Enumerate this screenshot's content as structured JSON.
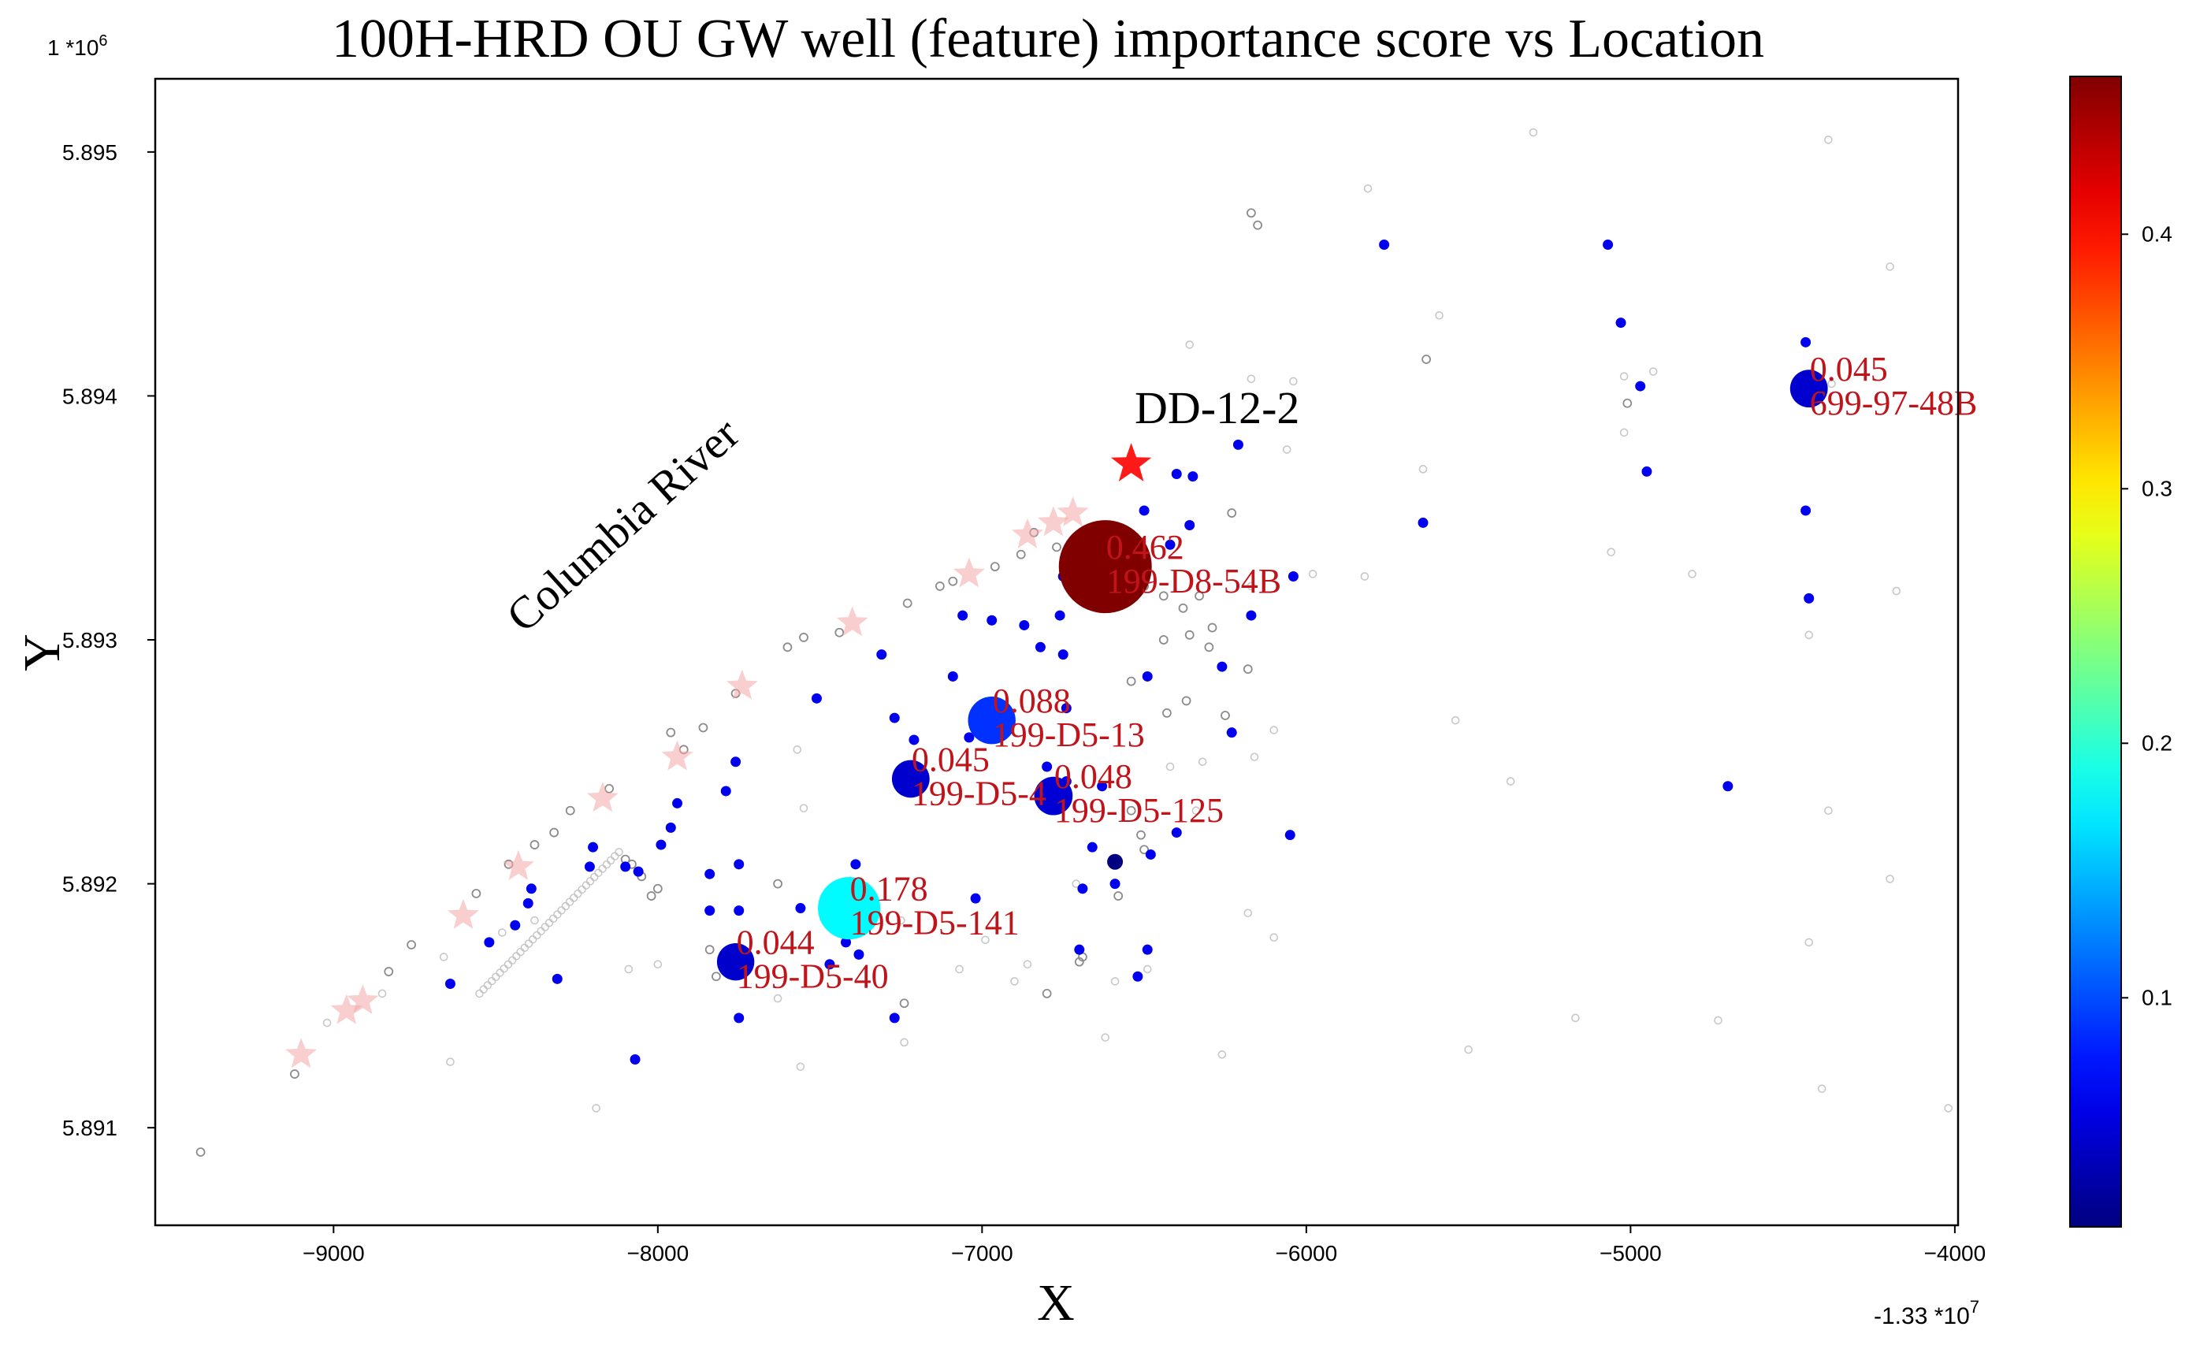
{
  "chart_data": {
    "type": "scatter",
    "title": "100H-HRD OU GW well (feature) importance score vs Location",
    "xlabel": "X",
    "ylabel": "Y",
    "x_offset_label": "-1.33 *10",
    "x_offset_exp": "7",
    "y_scale_label": "1 *10",
    "y_scale_exp": "6",
    "xlim": [
      -9550,
      -3990
    ],
    "ylim": [
      5.8906,
      5.8953
    ],
    "x_ticks": [
      -9000,
      -8000,
      -7000,
      -6000,
      -5000,
      -4000
    ],
    "x_tick_labels": [
      "−9000",
      "−8000",
      "−7000",
      "−6000",
      "−5000",
      "−4000"
    ],
    "y_ticks": [
      5.891,
      5.892,
      5.893,
      5.894,
      5.895
    ],
    "y_tick_labels": [
      "5.891",
      "5.892",
      "5.893",
      "5.894",
      "5.895"
    ],
    "grid": false,
    "colorbar": {
      "colormap": "jet",
      "range": [
        0.01,
        0.462
      ],
      "ticks": [
        0.1,
        0.2,
        0.3,
        0.4
      ],
      "tick_labels": [
        "0.1",
        "0.2",
        "0.3",
        "0.4"
      ],
      "position": "right"
    },
    "annotations": {
      "river_label": "Columbia River",
      "target_well_label": "DD-12-2"
    },
    "target_well": {
      "x": -6540,
      "y": 5.89372,
      "color": "#ff1a1a"
    },
    "labeled_wells": [
      {
        "name": "199-D8-54B",
        "score": 0.462,
        "score_label": "0.462",
        "x": -6620,
        "y": 5.8933,
        "size": 0.462
      },
      {
        "name": "199-D5-141",
        "score": 0.178,
        "score_label": "0.178",
        "x": -7410,
        "y": 5.8919,
        "size": 0.178
      },
      {
        "name": "199-D5-13",
        "score": 0.088,
        "score_label": "0.088",
        "x": -6970,
        "y": 5.89267,
        "size": 0.088
      },
      {
        "name": "199-D5-125",
        "score": 0.048,
        "score_label": "0.048",
        "x": -6780,
        "y": 5.89236,
        "size": 0.048
      },
      {
        "name": "199-D5-4",
        "score": 0.045,
        "score_label": "0.045",
        "x": -7220,
        "y": 5.89243,
        "size": 0.045
      },
      {
        "name": "699-97-48B",
        "score": 0.045,
        "score_label": "0.045",
        "x": -4450,
        "y": 5.89403,
        "size": 0.045
      },
      {
        "name": "199-D5-40",
        "score": 0.044,
        "score_label": "0.044",
        "x": -7760,
        "y": 5.89168,
        "size": 0.044
      }
    ],
    "wells": [
      [
        -5760,
        5.89462
      ],
      [
        -5070,
        5.89462
      ],
      [
        -5030,
        5.8943
      ],
      [
        -4970,
        5.89404
      ],
      [
        -4950,
        5.89369
      ],
      [
        -4460,
        5.89422
      ],
      [
        -4460,
        5.89353
      ],
      [
        -4450,
        5.89317
      ],
      [
        -4700,
        5.8924
      ],
      [
        -5640,
        5.89348
      ],
      [
        -6210,
        5.8938
      ],
      [
        -6400,
        5.89368
      ],
      [
        -6350,
        5.89367
      ],
      [
        -6500,
        5.89353
      ],
      [
        -6360,
        5.89347
      ],
      [
        -6420,
        5.89339
      ],
      [
        -6040,
        5.89326
      ],
      [
        -6170,
        5.8931
      ],
      [
        -6260,
        5.89289
      ],
      [
        -6490,
        5.89285
      ],
      [
        -6230,
        5.89262
      ],
      [
        -6750,
        5.89326
      ],
      [
        -6760,
        5.8931
      ],
      [
        -6820,
        5.89297
      ],
      [
        -6970,
        5.89308
      ],
      [
        -7060,
        5.8931
      ],
      [
        -6870,
        5.89306
      ],
      [
        -6750,
        5.89294
      ],
      [
        -7310,
        5.89294
      ],
      [
        -7090,
        5.89285
      ],
      [
        -6740,
        5.89272
      ],
      [
        -7510,
        5.89276
      ],
      [
        -7270,
        5.89268
      ],
      [
        -7040,
        5.8926
      ],
      [
        -7210,
        5.89259
      ],
      [
        -6800,
        5.89248
      ],
      [
        -6740,
        5.89242
      ],
      [
        -6630,
        5.8924
      ],
      [
        -6800,
        5.89232
      ],
      [
        -7760,
        5.8925
      ],
      [
        -7790,
        5.89238
      ],
      [
        -7940,
        5.89233
      ],
      [
        -7960,
        5.89223
      ],
      [
        -7990,
        5.89216
      ],
      [
        -8200,
        5.89215
      ],
      [
        -8100,
        5.89207
      ],
      [
        -8210,
        5.89207
      ],
      [
        -8060,
        5.89205
      ],
      [
        -8390,
        5.89198
      ],
      [
        -7840,
        5.89204
      ],
      [
        -7750,
        5.89208
      ],
      [
        -8400,
        5.89192
      ],
      [
        -8440,
        5.89183
      ],
      [
        -8520,
        5.89176
      ],
      [
        -7840,
        5.89189
      ],
      [
        -7750,
        5.89189
      ],
      [
        -8310,
        5.89161
      ],
      [
        -8640,
        5.89159
      ],
      [
        -7390,
        5.89208
      ],
      [
        -7560,
        5.8919
      ],
      [
        -7020,
        5.89194
      ],
      [
        -7380,
        5.89171
      ],
      [
        -7470,
        5.89167
      ],
      [
        -7420,
        5.89176
      ],
      [
        -6590,
        5.892
      ],
      [
        -6690,
        5.89198
      ],
      [
        -6700,
        5.89173
      ],
      [
        -6490,
        5.89173
      ],
      [
        -6520,
        5.89162
      ],
      [
        -6660,
        5.89215
      ],
      [
        -6480,
        5.89212
      ],
      [
        -6400,
        5.89221
      ],
      [
        -6050,
        5.8922
      ],
      [
        -7750,
        5.89145
      ],
      [
        -7270,
        5.89145
      ],
      [
        -8070,
        5.89128
      ]
    ],
    "dark_well": [
      -6590,
      5.89209
    ],
    "river_stars": [
      [
        -9100,
        5.8913
      ],
      [
        -8960,
        5.89148
      ],
      [
        -8910,
        5.89152
      ],
      [
        -8600,
        5.89187
      ],
      [
        -8430,
        5.89207
      ],
      [
        -8170,
        5.89235
      ],
      [
        -7940,
        5.89252
      ],
      [
        -7740,
        5.89281
      ],
      [
        -7400,
        5.89307
      ],
      [
        -7040,
        5.89327
      ],
      [
        -6860,
        5.89343
      ],
      [
        -6780,
        5.89348
      ],
      [
        -6720,
        5.89352
      ]
    ],
    "other_locations": [
      [
        -9410,
        5.8909
      ],
      [
        -9120,
        5.89122
      ],
      [
        -8830,
        5.89164
      ],
      [
        -8760,
        5.89175
      ],
      [
        -8560,
        5.89196
      ],
      [
        -8460,
        5.89208
      ],
      [
        -8380,
        5.89216
      ],
      [
        -8320,
        5.89221
      ],
      [
        -8270,
        5.8923
      ],
      [
        -8150,
        5.89239
      ],
      [
        -8100,
        5.8921
      ],
      [
        -8080,
        5.89208
      ],
      [
        -8050,
        5.89203
      ],
      [
        -8020,
        5.89195
      ],
      [
        -7920,
        5.89255
      ],
      [
        -7860,
        5.89264
      ],
      [
        -7760,
        5.89278
      ],
      [
        -7600,
        5.89297
      ],
      [
        -7550,
        5.89301
      ],
      [
        -7440,
        5.89303
      ],
      [
        -7230,
        5.89315
      ],
      [
        -7130,
        5.89322
      ],
      [
        -7090,
        5.89324
      ],
      [
        -6960,
        5.8933
      ],
      [
        -6880,
        5.89335
      ],
      [
        -6840,
        5.89344
      ],
      [
        -6770,
        5.89338
      ],
      [
        -6710,
        5.89328
      ],
      [
        -6500,
        5.89322
      ],
      [
        -6440,
        5.89318
      ],
      [
        -6380,
        5.89313
      ],
      [
        -6330,
        5.89318
      ],
      [
        -6290,
        5.89305
      ],
      [
        -6440,
        5.893
      ],
      [
        -6360,
        5.89302
      ],
      [
        -6300,
        5.89297
      ],
      [
        -6180,
        5.89288
      ],
      [
        -6230,
        5.89352
      ],
      [
        -6170,
        5.89475
      ],
      [
        -6150,
        5.8947
      ],
      [
        -5630,
        5.89415
      ],
      [
        -5010,
        5.89397
      ],
      [
        -6540,
        5.89283
      ],
      [
        -6430,
        5.8927
      ],
      [
        -6370,
        5.89275
      ],
      [
        -6250,
        5.89269
      ],
      [
        -6540,
        5.8923
      ],
      [
        -6510,
        5.8922
      ],
      [
        -6500,
        5.89214
      ],
      [
        -6580,
        5.89195
      ],
      [
        -6700,
        5.89168
      ],
      [
        -6690,
        5.8917
      ],
      [
        -6800,
        5.89155
      ],
      [
        -7840,
        5.89173
      ],
      [
        -7820,
        5.89162
      ],
      [
        -7240,
        5.89151
      ],
      [
        -7630,
        5.892
      ],
      [
        -7960,
        5.89262
      ],
      [
        -8000,
        5.89198
      ]
    ],
    "faint_points": [
      [
        -5300,
        5.89508
      ],
      [
        -4390,
        5.89505
      ],
      [
        -5810,
        5.89485
      ],
      [
        -4200,
        5.89453
      ],
      [
        -5590,
        5.89433
      ],
      [
        -6360,
        5.89421
      ],
      [
        -6170,
        5.89407
      ],
      [
        -6040,
        5.89406
      ],
      [
        -5020,
        5.89408
      ],
      [
        -4930,
        5.8941
      ],
      [
        -4380,
        5.89405
      ],
      [
        -5020,
        5.89385
      ],
      [
        -5640,
        5.8937
      ],
      [
        -6060,
        5.89378
      ],
      [
        -5820,
        5.89326
      ],
      [
        -5980,
        5.89327
      ],
      [
        -5060,
        5.89336
      ],
      [
        -4810,
        5.89327
      ],
      [
        -4180,
        5.8932
      ],
      [
        -4450,
        5.89302
      ],
      [
        -5540,
        5.89267
      ],
      [
        -5370,
        5.89242
      ],
      [
        -4390,
        5.8923
      ],
      [
        -4200,
        5.89202
      ],
      [
        -4450,
        5.89176
      ],
      [
        -4730,
        5.89144
      ],
      [
        -5500,
        5.89132
      ],
      [
        -5170,
        5.89145
      ],
      [
        -4410,
        5.89116
      ],
      [
        -4020,
        5.89108
      ],
      [
        -6260,
        5.8913
      ],
      [
        -6710,
        5.892
      ],
      [
        -6990,
        5.89177
      ],
      [
        -6900,
        5.8916
      ],
      [
        -7070,
        5.89165
      ],
      [
        -7250,
        5.89185
      ],
      [
        -7570,
        5.89255
      ],
      [
        -7550,
        5.89231
      ],
      [
        -7630,
        5.89153
      ],
      [
        -8000,
        5.89167
      ],
      [
        -8090,
        5.89165
      ],
      [
        -8380,
        5.89185
      ],
      [
        -8480,
        5.8918
      ],
      [
        -8660,
        5.8917
      ],
      [
        -8850,
        5.89155
      ],
      [
        -9020,
        5.89143
      ],
      [
        -8640,
        5.89127
      ],
      [
        -8190,
        5.89108
      ],
      [
        -7560,
        5.89125
      ],
      [
        -7240,
        5.89135
      ],
      [
        -6490,
        5.89165
      ],
      [
        -6860,
        5.89167
      ],
      [
        -6620,
        5.89137
      ],
      [
        -6590,
        5.8916
      ],
      [
        -6180,
        5.89188
      ],
      [
        -6100,
        5.89178
      ],
      [
        -6420,
        5.89248
      ],
      [
        -6320,
        5.8925
      ],
      [
        -6160,
        5.89252
      ],
      [
        -6100,
        5.89263
      ],
      [
        -6170,
        5.89322
      ],
      [
        -6340,
        5.8923
      ]
    ],
    "ghost_streak": {
      "from": [
        -8550,
        5.89155
      ],
      "to": [
        -8120,
        5.89213
      ]
    }
  }
}
